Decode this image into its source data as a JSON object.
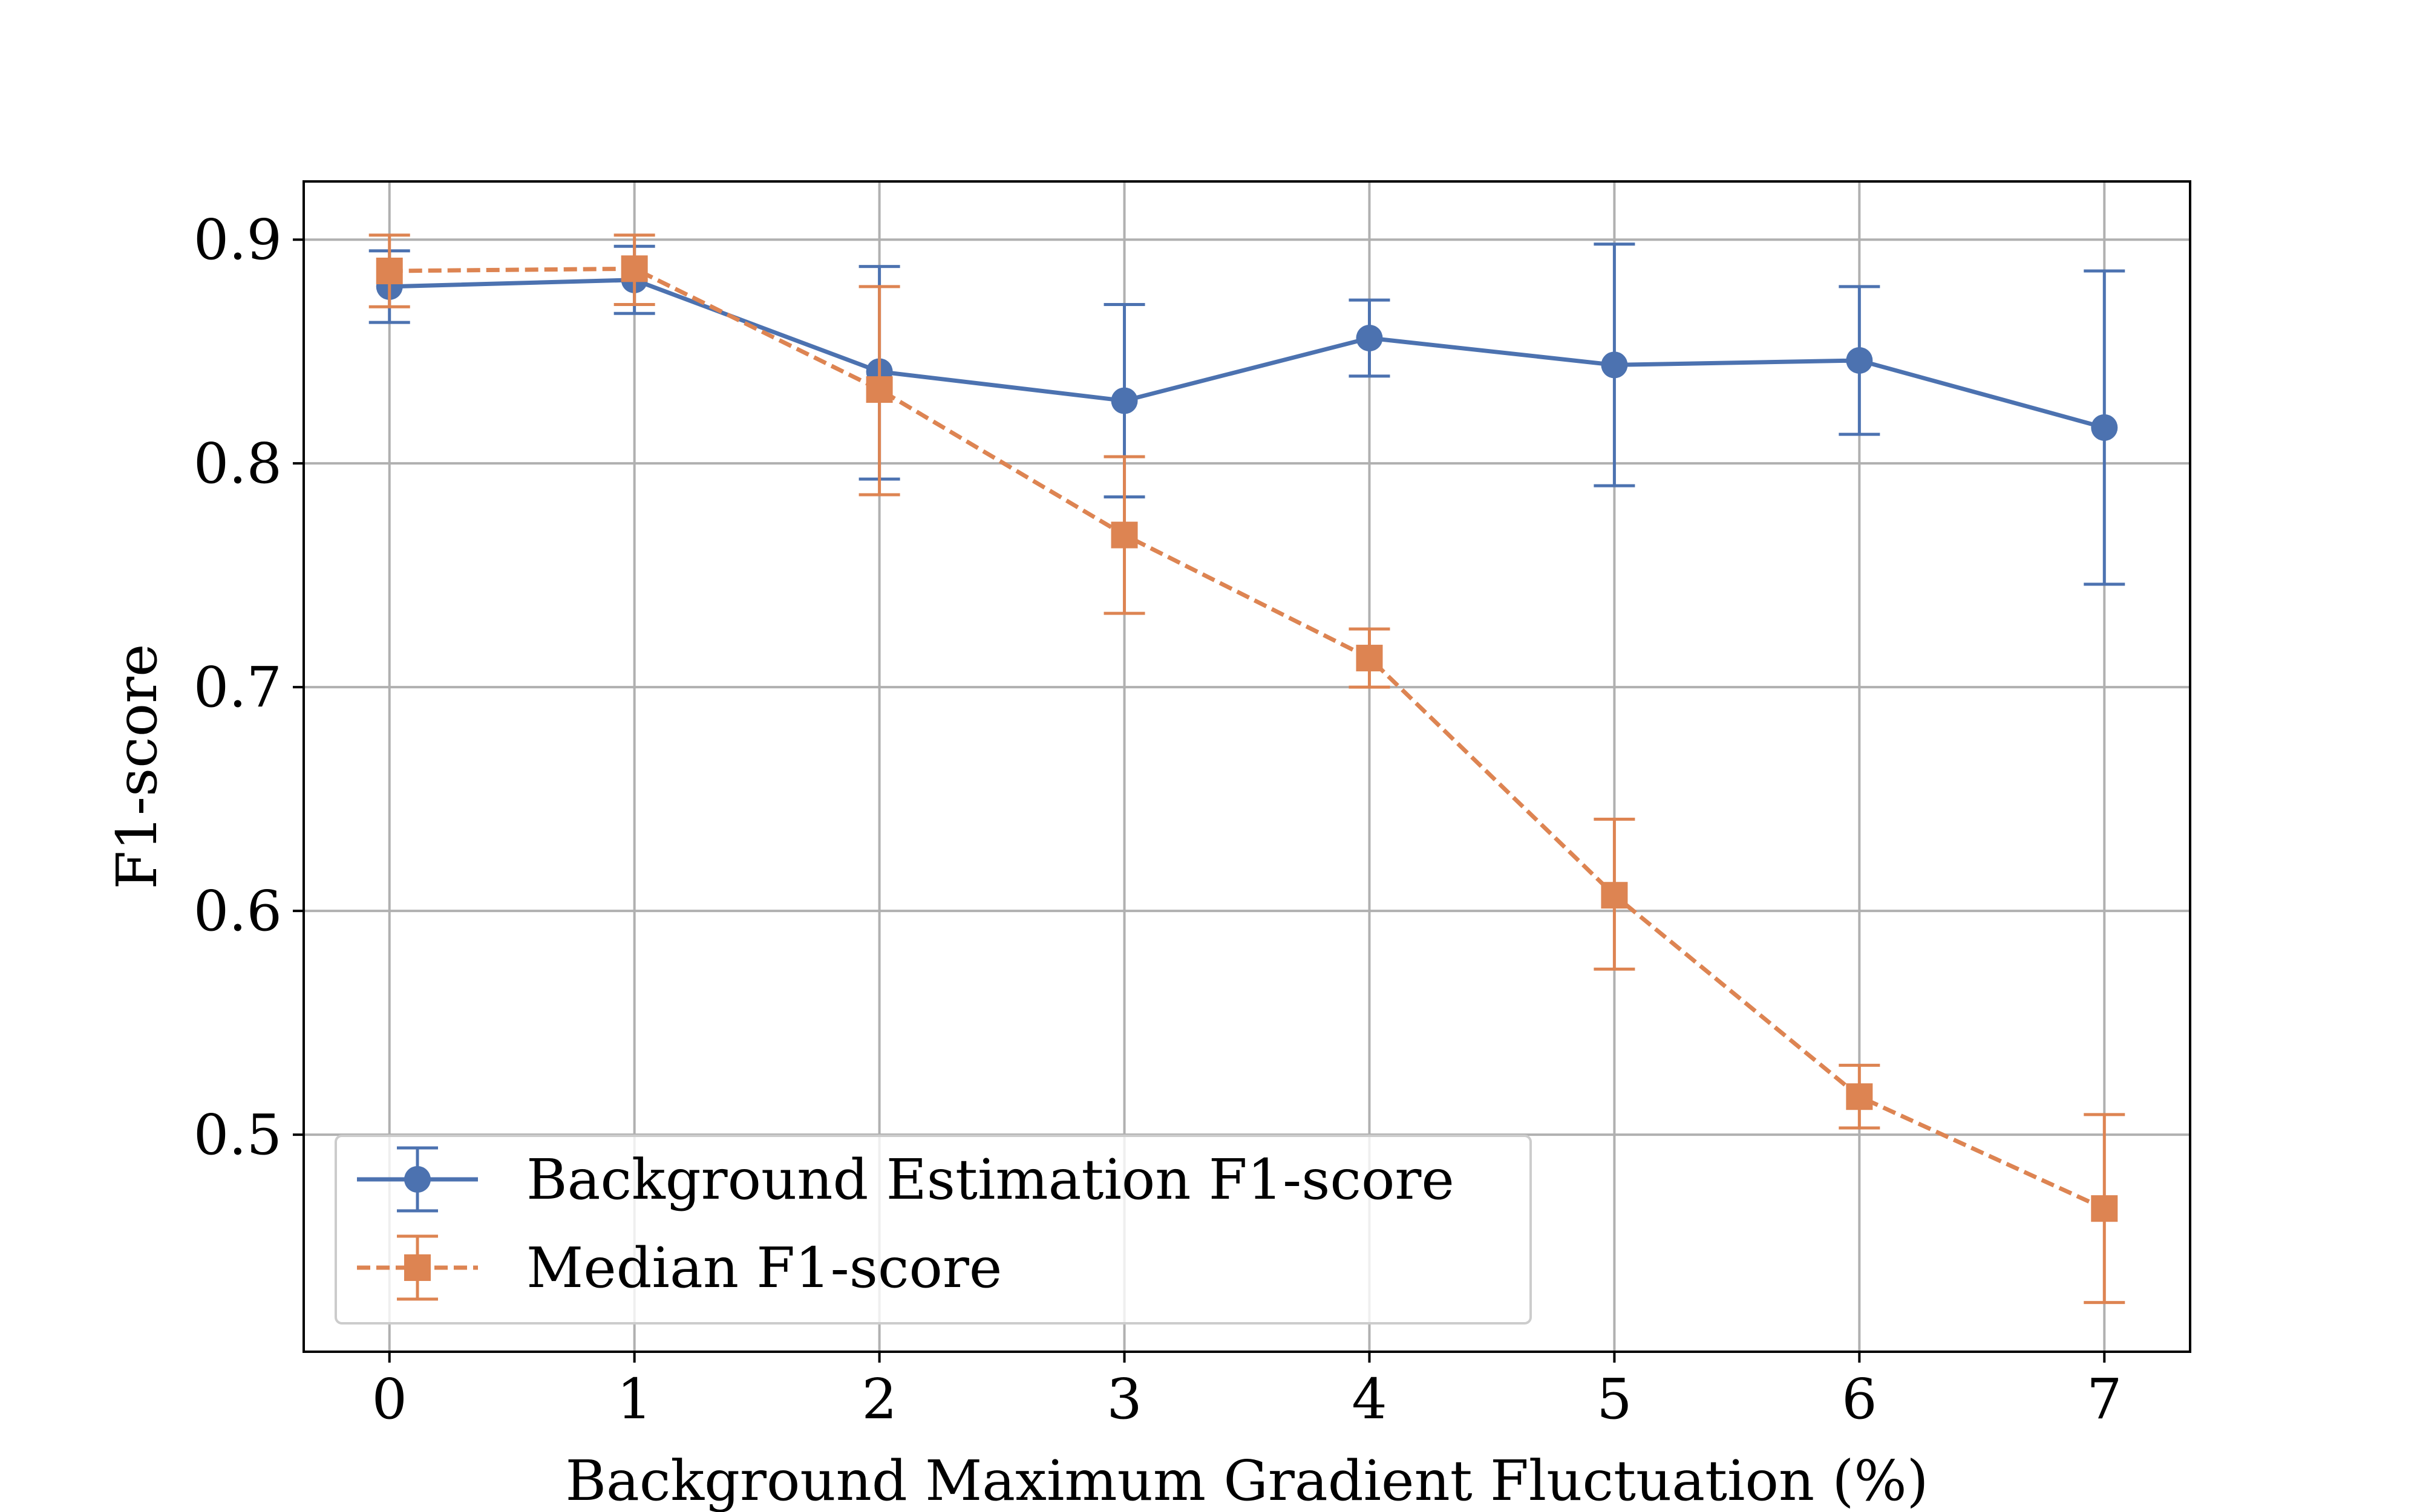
{
  "chart_data": {
    "type": "line",
    "title": "",
    "xlabel": "Background Maximum Gradient Fluctuation (%)",
    "ylabel": "F1-score",
    "x": [
      0,
      1,
      2,
      3,
      4,
      5,
      6,
      7
    ],
    "xlim": [
      -0.35,
      7.35
    ],
    "ylim": [
      0.403,
      0.926
    ],
    "xticks": [
      0,
      1,
      2,
      3,
      4,
      5,
      6,
      7
    ],
    "xtick_labels": [
      "0",
      "1",
      "2",
      "3",
      "4",
      "5",
      "6",
      "7"
    ],
    "yticks": [
      0.5,
      0.6,
      0.7,
      0.8,
      0.9
    ],
    "ytick_labels": [
      "0.5",
      "0.6",
      "0.7",
      "0.8",
      "0.9"
    ],
    "grid": true,
    "legend_position": "lower-left",
    "series": [
      {
        "name": "Background Estimation F1-score",
        "color": "#4c72b0",
        "marker": "circle",
        "linestyle": "solid",
        "values": [
          0.879,
          0.882,
          0.841,
          0.828,
          0.856,
          0.844,
          0.846,
          0.816
        ],
        "error_low": [
          0.863,
          0.867,
          0.793,
          0.785,
          0.839,
          0.79,
          0.813,
          0.746
        ],
        "error_high": [
          0.895,
          0.897,
          0.888,
          0.871,
          0.873,
          0.898,
          0.879,
          0.886
        ]
      },
      {
        "name": "Median F1-score",
        "color": "#dd8452",
        "marker": "square",
        "linestyle": "dashed",
        "values": [
          0.886,
          0.887,
          0.833,
          0.768,
          0.713,
          0.607,
          0.517,
          0.467
        ],
        "error_low": [
          0.87,
          0.871,
          0.786,
          0.733,
          0.7,
          0.574,
          0.503,
          0.425
        ],
        "error_high": [
          0.902,
          0.902,
          0.879,
          0.803,
          0.726,
          0.641,
          0.531,
          0.509
        ]
      }
    ]
  }
}
